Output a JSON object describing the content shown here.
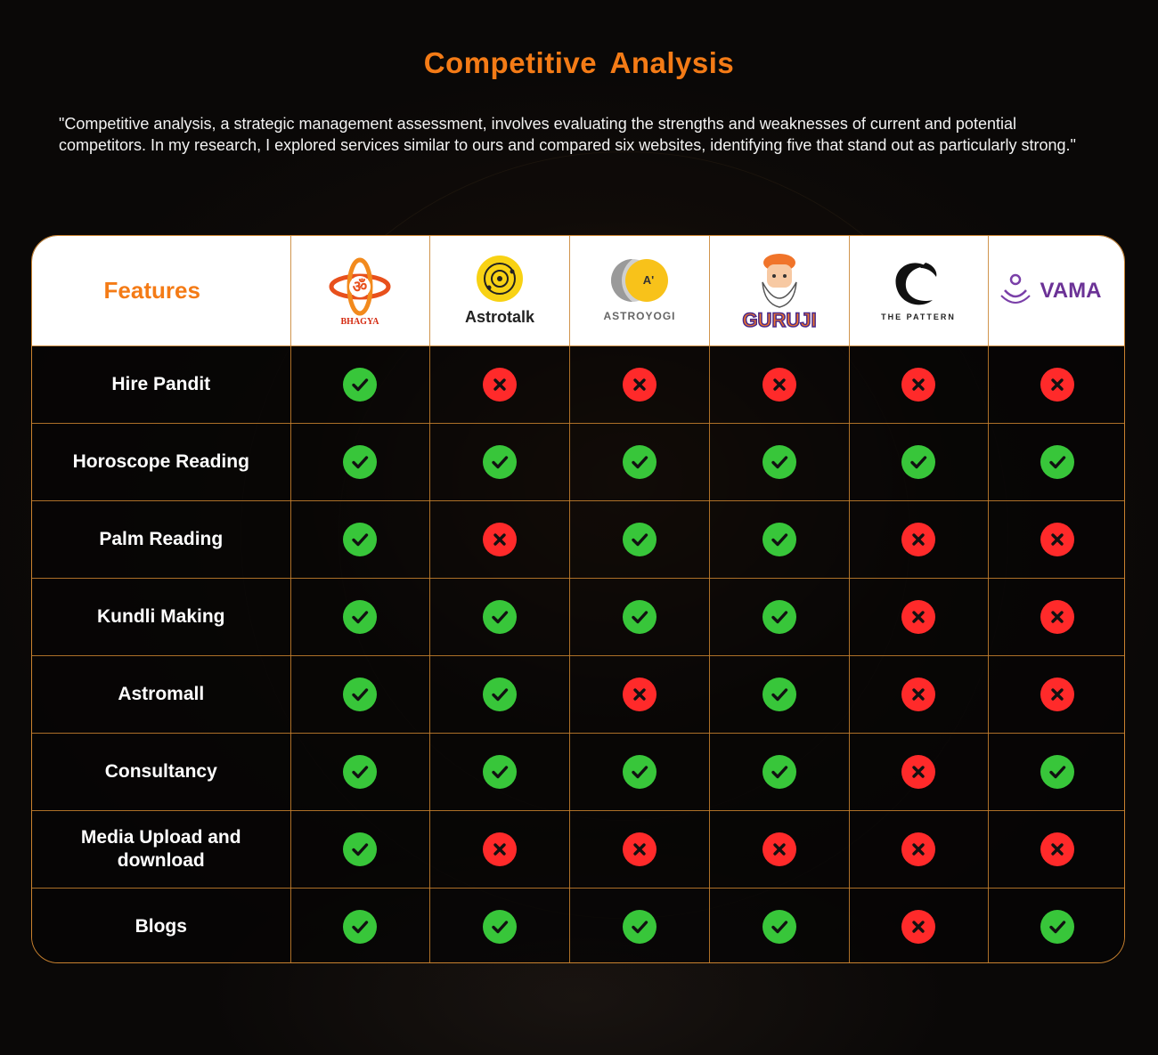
{
  "title": "Competitive  Analysis",
  "intro": "\"Competitive analysis, a strategic management assessment, involves evaluating the strengths and weaknesses of current and potential competitors. In my research, I explored services similar to ours and compared six websites, identifying five that stand out as particularly strong.\"",
  "table": {
    "features_header": "Features",
    "competitors": [
      {
        "name": "BHAGYA",
        "icon": "bhagya-logo"
      },
      {
        "name": "Astrotalk",
        "icon": "astrotalk-logo"
      },
      {
        "name": "ASTROYOGI",
        "icon": "astroyogi-logo"
      },
      {
        "name": "GURUJI",
        "icon": "guruji-logo"
      },
      {
        "name": "THE PATTERN",
        "icon": "the-pattern-logo"
      },
      {
        "name": "VAMA",
        "icon": "vama-logo"
      }
    ],
    "rows": [
      {
        "feature": "Hire Pandit",
        "values": [
          true,
          false,
          false,
          false,
          false,
          false
        ]
      },
      {
        "feature": "Horoscope Reading",
        "values": [
          true,
          true,
          true,
          true,
          true,
          true
        ]
      },
      {
        "feature": "Palm Reading",
        "values": [
          true,
          false,
          true,
          true,
          false,
          false
        ]
      },
      {
        "feature": "Kundli Making",
        "values": [
          true,
          true,
          true,
          true,
          false,
          false
        ]
      },
      {
        "feature": "Astromall",
        "values": [
          true,
          true,
          false,
          true,
          false,
          false
        ]
      },
      {
        "feature": "Consultancy",
        "values": [
          true,
          true,
          true,
          true,
          false,
          true
        ]
      },
      {
        "feature": "Media Upload and download",
        "values": [
          true,
          false,
          false,
          false,
          false,
          false
        ]
      },
      {
        "feature": "Blogs",
        "values": [
          true,
          true,
          true,
          true,
          false,
          true
        ]
      }
    ]
  },
  "colors": {
    "accent": "#f47b16",
    "check": "#38c63a",
    "cross": "#ff2a2a",
    "border": "#c9822f"
  }
}
